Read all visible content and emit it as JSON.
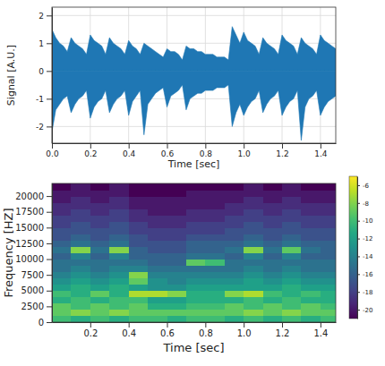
{
  "chart_data": [
    {
      "type": "area",
      "x_label": "Time [sec]",
      "y_label": "Signal [A.U.]",
      "color": "#1f77b4",
      "grid": true,
      "xlim": [
        0,
        1.48
      ],
      "ylim": [
        -2.6,
        2.3
      ],
      "xticks": [
        {
          "value": 0,
          "label": "0.0"
        },
        0.2,
        0.4,
        0.6,
        0.8,
        {
          "value": 1,
          "label": "1.0"
        },
        1.2,
        1.4
      ],
      "yticks": [
        -2,
        -1,
        0,
        1,
        2
      ],
      "x": [
        0,
        0.02,
        0.04,
        0.06,
        0.08,
        0.1,
        0.12,
        0.14,
        0.16,
        0.18,
        0.2,
        0.22,
        0.24,
        0.26,
        0.28,
        0.3,
        0.32,
        0.34,
        0.36,
        0.38,
        0.4,
        0.42,
        0.44,
        0.46,
        0.48,
        0.5,
        0.52,
        0.54,
        0.56,
        0.58,
        0.6,
        0.62,
        0.64,
        0.66,
        0.68,
        0.7,
        0.72,
        0.74,
        0.76,
        0.78,
        0.8,
        0.82,
        0.84,
        0.86,
        0.88,
        0.9,
        0.92,
        0.94,
        0.96,
        0.98,
        1,
        1.02,
        1.04,
        1.06,
        1.08,
        1.1,
        1.12,
        1.14,
        1.16,
        1.18,
        1.2,
        1.22,
        1.24,
        1.26,
        1.28,
        1.3,
        1.32,
        1.34,
        1.36,
        1.38,
        1.4,
        1.42,
        1.44,
        1.46,
        1.48
      ],
      "upper": [
        1.5,
        1.2,
        1.0,
        0.9,
        0.7,
        1.2,
        1.0,
        0.9,
        0.8,
        0.6,
        1.3,
        1.1,
        1.0,
        0.9,
        0.6,
        1.2,
        1.0,
        0.9,
        0.8,
        0.6,
        1.1,
        0.9,
        0.8,
        0.6,
        1.0,
        0.9,
        0.8,
        0.7,
        0.6,
        0.5,
        0.8,
        0.7,
        0.7,
        0.6,
        0.4,
        0.9,
        0.8,
        0.8,
        0.7,
        0.7,
        0.6,
        0.6,
        0.6,
        0.5,
        0.5,
        0.5,
        0.4,
        1.6,
        1.3,
        1.0,
        1.4,
        1.1,
        1.0,
        0.9,
        0.6,
        1.2,
        1.0,
        0.9,
        0.8,
        0.6,
        1.3,
        1.1,
        1.0,
        0.9,
        0.6,
        1.2,
        1.0,
        0.9,
        0.8,
        0.6,
        1.3,
        1.1,
        1.0,
        0.9,
        0.8
      ],
      "lower": [
        -2.2,
        -1.4,
        -1.2,
        -1.0,
        -0.9,
        -1.5,
        -1.2,
        -1.0,
        -0.9,
        -0.7,
        -1.7,
        -1.3,
        -1.1,
        -1.0,
        -0.7,
        -1.5,
        -1.2,
        -1.0,
        -0.9,
        -0.7,
        -1.6,
        -1.1,
        -0.9,
        -0.7,
        -2.3,
        -1.2,
        -1.0,
        -0.8,
        -0.7,
        -0.6,
        -1.3,
        -0.9,
        -0.8,
        -0.7,
        -0.5,
        -1.4,
        -1.0,
        -0.9,
        -0.8,
        -0.8,
        -0.7,
        -0.7,
        -0.7,
        -0.6,
        -0.6,
        -0.6,
        -0.5,
        -2.0,
        -1.5,
        -1.2,
        -1.6,
        -1.3,
        -1.1,
        -1.0,
        -0.7,
        -1.5,
        -1.2,
        -1.0,
        -0.9,
        -0.7,
        -1.6,
        -1.3,
        -1.1,
        -1.0,
        -0.7,
        -2.5,
        -1.3,
        -1.0,
        -0.9,
        -0.7,
        -1.6,
        -1.3,
        -1.1,
        -1.0,
        -0.9
      ]
    },
    {
      "type": "heatmap",
      "x_label": "Time [sec]",
      "y_label": "Frequency [HZ]",
      "color": "viridis",
      "grid": false,
      "xlim": [
        0,
        1.48
      ],
      "ylim": [
        0,
        22000
      ],
      "xticks": [
        0.2,
        0.4,
        0.6,
        0.8,
        {
          "value": 1,
          "label": "1.0"
        },
        1.2,
        1.4
      ],
      "yticks": [
        0,
        2500,
        5000,
        7500,
        10000,
        12500,
        15000,
        17500,
        20000
      ],
      "x_edges": [
        0,
        0.1,
        0.2,
        0.3,
        0.4,
        0.5,
        0.6,
        0.7,
        0.8,
        0.9,
        1.0,
        1.1,
        1.2,
        1.3,
        1.4,
        1.48
      ],
      "y_edges": [
        0,
        1000,
        2000,
        3000,
        4000,
        5000,
        6000,
        7000,
        8000,
        9000,
        10000,
        11000,
        12000,
        13000,
        14000,
        15000,
        16000,
        17000,
        18000,
        19000,
        20000,
        21000,
        22000
      ],
      "cells": [
        [
          -10,
          -11,
          -10,
          -11,
          -10,
          -10,
          -11,
          -10,
          -10,
          -11,
          -10,
          -11,
          -10,
          -11,
          -10
        ],
        [
          -9,
          -8,
          -9,
          -8,
          -9,
          -9,
          -9,
          -9,
          -9,
          -9,
          -8,
          -9,
          -8,
          -9,
          -9
        ],
        [
          -9,
          -10,
          -9,
          -10,
          -9,
          -11,
          -11,
          -10,
          -10,
          -9,
          -10,
          -9,
          -10,
          -9,
          -10
        ],
        [
          -11,
          -10,
          -11,
          -10,
          -10,
          -12,
          -12,
          -11,
          -11,
          -11,
          -10,
          -11,
          -10,
          -11,
          -11
        ],
        [
          -10,
          -11,
          -9,
          -11,
          -7,
          -7,
          -8,
          -11,
          -11,
          -8,
          -7,
          -10,
          -11,
          -10,
          -11
        ],
        [
          -12,
          -11,
          -12,
          -11,
          -12,
          -13,
          -13,
          -12,
          -12,
          -12,
          -12,
          -12,
          -11,
          -12,
          -12
        ],
        [
          -13,
          -12,
          -13,
          -12,
          -9,
          -13,
          -14,
          -13,
          -13,
          -13,
          -12,
          -13,
          -12,
          -13,
          -13
        ],
        [
          -14,
          -13,
          -14,
          -13,
          -8,
          -14,
          -14,
          -14,
          -14,
          -14,
          -13,
          -14,
          -13,
          -14,
          -14
        ],
        [
          -15,
          -14,
          -15,
          -14,
          -14,
          -15,
          -15,
          -15,
          -15,
          -15,
          -14,
          -15,
          -14,
          -15,
          -15
        ],
        [
          -15,
          -15,
          -15,
          -15,
          -15,
          -16,
          -16,
          -9,
          -10,
          -15,
          -15,
          -15,
          -15,
          -15,
          -15
        ],
        [
          -16,
          -14,
          -16,
          -14,
          -16,
          -16,
          -16,
          -15,
          -15,
          -16,
          -14,
          -16,
          -14,
          -16,
          -16
        ],
        [
          -15,
          -8,
          -15,
          -8,
          -16,
          -17,
          -17,
          -16,
          -16,
          -15,
          -8,
          -15,
          -9,
          -15,
          -16
        ],
        [
          -16,
          -15,
          -16,
          -15,
          -17,
          -17,
          -17,
          -16,
          -16,
          -16,
          -15,
          -16,
          -15,
          -16,
          -16
        ],
        [
          -17,
          -16,
          -17,
          -16,
          -17,
          -18,
          -18,
          -17,
          -17,
          -17,
          -16,
          -17,
          -16,
          -17,
          -17
        ],
        [
          -17,
          -17,
          -17,
          -17,
          -18,
          -18,
          -18,
          -18,
          -18,
          -17,
          -17,
          -17,
          -17,
          -17,
          -17
        ],
        [
          -18,
          -17,
          -18,
          -17,
          -18,
          -19,
          -19,
          -18,
          -18,
          -18,
          -17,
          -18,
          -17,
          -18,
          -18
        ],
        [
          -18,
          -18,
          -18,
          -18,
          -19,
          -19,
          -19,
          -19,
          -19,
          -18,
          -18,
          -18,
          -18,
          -18,
          -18
        ],
        [
          -19,
          -18,
          -19,
          -18,
          -19,
          -20,
          -20,
          -19,
          -19,
          -19,
          -18,
          -19,
          -18,
          -19,
          -19
        ],
        [
          -19,
          -19,
          -19,
          -19,
          -20,
          -20,
          -20,
          -20,
          -20,
          -19,
          -19,
          -19,
          -19,
          -19,
          -19
        ],
        [
          -20,
          -19,
          -20,
          -19,
          -20,
          -20,
          -20,
          -20,
          -20,
          -20,
          -19,
          -20,
          -19,
          -20,
          -20
        ],
        [
          -20,
          -20,
          -20,
          -20,
          -21,
          -21,
          -21,
          -20,
          -20,
          -20,
          -20,
          -20,
          -20,
          -20,
          -20
        ],
        [
          -21,
          -20,
          -21,
          -20,
          -21,
          -21,
          -21,
          -21,
          -21,
          -21,
          -20,
          -21,
          -20,
          -21,
          -21
        ]
      ],
      "colorbar": {
        "range": [
          -21,
          -5
        ],
        "ticks": [
          -6,
          -8,
          -10,
          -12,
          -14,
          -16,
          -18,
          -20
        ]
      }
    }
  ]
}
